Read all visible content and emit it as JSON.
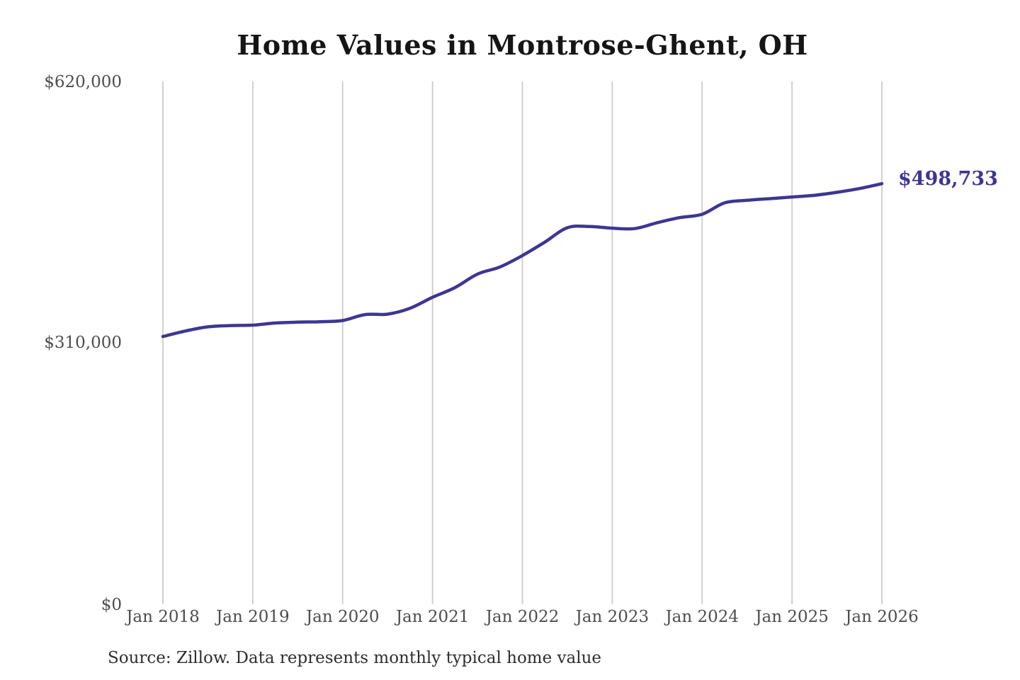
{
  "colors": {
    "background": "#ffffff",
    "line": "#3d3693",
    "grid": "#cbcbcb",
    "axis_text": "#4d4d4d",
    "title_text": "#151515",
    "source_text": "#2e2e2e",
    "end_label_text": "#3d3693"
  },
  "source_note": "Source: Zillow. Data represents monthly typical home value",
  "chart_data": {
    "type": "line",
    "title": "Home Values in Montrose-Ghent, OH",
    "x_ticks": [
      "Jan 2018",
      "Jan 2019",
      "Jan 2020",
      "Jan 2021",
      "Jan 2022",
      "Jan 2023",
      "Jan 2024",
      "Jan 2025",
      "Jan 2026"
    ],
    "y_ticks": [
      "$0",
      "$310,000",
      "$620,000"
    ],
    "ylim": [
      0,
      620000
    ],
    "xlim_years": [
      2018,
      2026
    ],
    "grid": "vertical-only",
    "end_label": "$498,733",
    "end_value": 498733,
    "x": [
      2018.0,
      2018.25,
      2018.5,
      2018.75,
      2019.0,
      2019.25,
      2019.5,
      2019.75,
      2020.0,
      2020.25,
      2020.5,
      2020.75,
      2021.0,
      2021.25,
      2021.5,
      2021.75,
      2022.0,
      2022.25,
      2022.5,
      2022.75,
      2023.0,
      2023.25,
      2023.5,
      2023.75,
      2024.0,
      2024.25,
      2024.5,
      2024.75,
      2025.0,
      2025.25,
      2025.5,
      2025.75,
      2026.0
    ],
    "values": [
      317500,
      324000,
      329000,
      330500,
      331000,
      333500,
      334500,
      335000,
      336500,
      343500,
      344000,
      351000,
      364000,
      375500,
      391500,
      400000,
      413500,
      429500,
      446500,
      448000,
      446000,
      445500,
      452500,
      458500,
      462500,
      476000,
      479000,
      481000,
      483000,
      485000,
      488500,
      493000,
      498733
    ]
  }
}
